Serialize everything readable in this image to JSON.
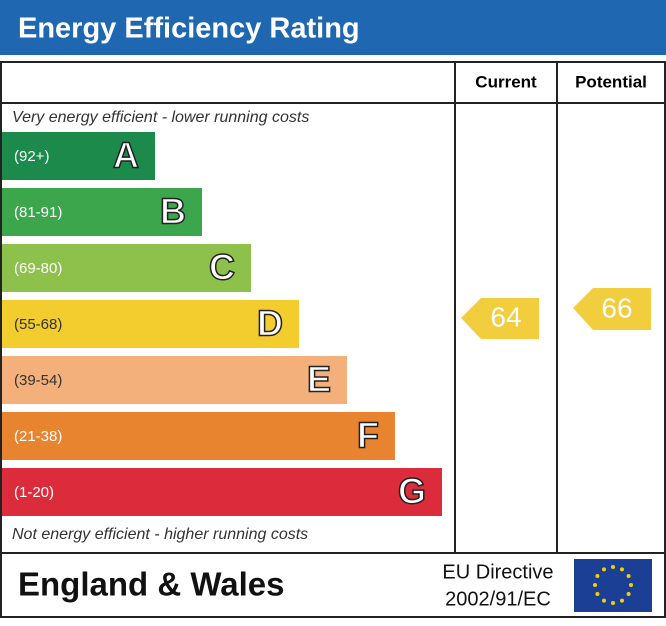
{
  "header": {
    "title": "Energy Efficiency Rating"
  },
  "columns": {
    "current": "Current",
    "potential": "Potential"
  },
  "top_note": "Very energy efficient - lower running costs",
  "bottom_note": "Not energy efficient - higher running costs",
  "bands": [
    {
      "range": "(92+)",
      "letter": "A",
      "color": "#1b8a4b"
    },
    {
      "range": "(81-91)",
      "letter": "B",
      "color": "#3ca64c"
    },
    {
      "range": "(69-80)",
      "letter": "C",
      "color": "#8dc14b"
    },
    {
      "range": "(55-68)",
      "letter": "D",
      "color": "#f2cd2d"
    },
    {
      "range": "(39-54)",
      "letter": "E",
      "color": "#f3b07b"
    },
    {
      "range": "(21-38)",
      "letter": "F",
      "color": "#e8832f"
    },
    {
      "range": "(1-20)",
      "letter": "G",
      "color": "#dc2b3b"
    }
  ],
  "ratings": {
    "current": "64",
    "potential": "66",
    "color": "#f2cd3d"
  },
  "footer": {
    "region": "England & Wales",
    "directive_line1": "EU Directive",
    "directive_line2": "2002/91/EC"
  }
}
